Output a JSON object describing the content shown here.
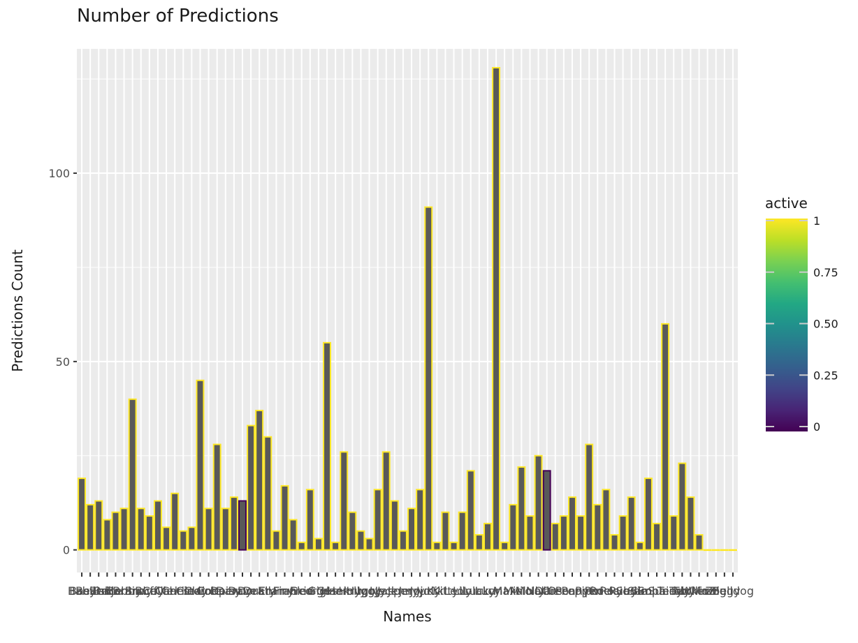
{
  "chart_data": {
    "type": "bar",
    "title": "Number of Predictions",
    "xlabel": "Names",
    "ylabel": "Predictions Count",
    "ylim": [
      -6,
      133
    ],
    "yticks": [
      0,
      50,
      100
    ],
    "grid": true,
    "fill_color": "#595959",
    "panel_color": "#ebebeb",
    "categories": [
      "Baby",
      "Basilisk",
      "Beatrice",
      "Bella",
      "Benjamin",
      "Bobby",
      "Brandy",
      "Bruce",
      "Buffy",
      "Callie",
      "Carl",
      "Charlie",
      "Chester",
      "Cindy",
      "Claire",
      "Cole",
      "Cooper",
      "Daisy",
      "Danny",
      "Dave",
      "Dora",
      "Dusty",
      "Ella",
      "Emmy",
      "Finn",
      "Frankie",
      "Fred",
      "George",
      "Gigi",
      "Gus",
      "Hank",
      "Henry",
      "Holly",
      "Hugo",
      "Iggy",
      "Ivy",
      "Jack",
      "Jasper",
      "Jenny",
      "Jerry",
      "Jojo",
      "Judy",
      "Kiki",
      "Kitty",
      "Leo",
      "Lily",
      "Lola",
      "Lucky",
      "Lucy",
      "Luna",
      "Max",
      "Mia",
      "Milo",
      "Molly",
      "Nala",
      "Ollie",
      "Oreo",
      "Oscar",
      "Penny",
      "Pepper",
      "Piper",
      "Pixie",
      "Rocky",
      "Rosie",
      "Ruby",
      "Sadie",
      "Sam",
      "Simba",
      "Sophie",
      "Sunny",
      "Teddy",
      "Toby",
      "Tucker",
      "Willow",
      "Winnie",
      "Zoe",
      "Ziggy",
      "Bulldog"
    ],
    "values": [
      19,
      12,
      13,
      8,
      10,
      11,
      40,
      11,
      9,
      13,
      6,
      15,
      5,
      6,
      45,
      11,
      28,
      11,
      14,
      13,
      33,
      37,
      30,
      5,
      17,
      8,
      2,
      16,
      3,
      55,
      2,
      26,
      10,
      5,
      3,
      16,
      26,
      13,
      5,
      11,
      16,
      91,
      2,
      10,
      2,
      10,
      21,
      4,
      7,
      128,
      2,
      12,
      22,
      9,
      25,
      21,
      7,
      9,
      14,
      9,
      28,
      12,
      16,
      4,
      9,
      14,
      2,
      19,
      7,
      60,
      9,
      23,
      14,
      4,
      0,
      0,
      0,
      0
    ],
    "active": [
      1,
      1,
      1,
      1,
      1,
      1,
      1,
      1,
      1,
      1,
      1,
      1,
      1,
      1,
      1,
      1,
      1,
      1,
      1,
      0,
      1,
      1,
      1,
      1,
      1,
      1,
      1,
      1,
      1,
      1,
      1,
      1,
      1,
      1,
      1,
      1,
      1,
      1,
      1,
      1,
      1,
      1,
      1,
      1,
      1,
      1,
      1,
      1,
      1,
      1,
      1,
      1,
      1,
      1,
      1,
      0,
      1,
      1,
      1,
      1,
      1,
      1,
      1,
      1,
      1,
      1,
      1,
      1,
      1,
      1,
      1,
      1,
      1,
      1,
      1,
      1,
      1,
      1
    ],
    "legend": {
      "title": "active",
      "position": "right",
      "breaks": [
        0,
        0.25,
        0.5,
        0.75,
        1
      ],
      "labels": [
        "0",
        "0.25",
        "0.50",
        "0.75",
        "1"
      ],
      "colors": [
        "#440154",
        "#3b528b",
        "#21918c",
        "#5ec962",
        "#fde725"
      ]
    }
  }
}
